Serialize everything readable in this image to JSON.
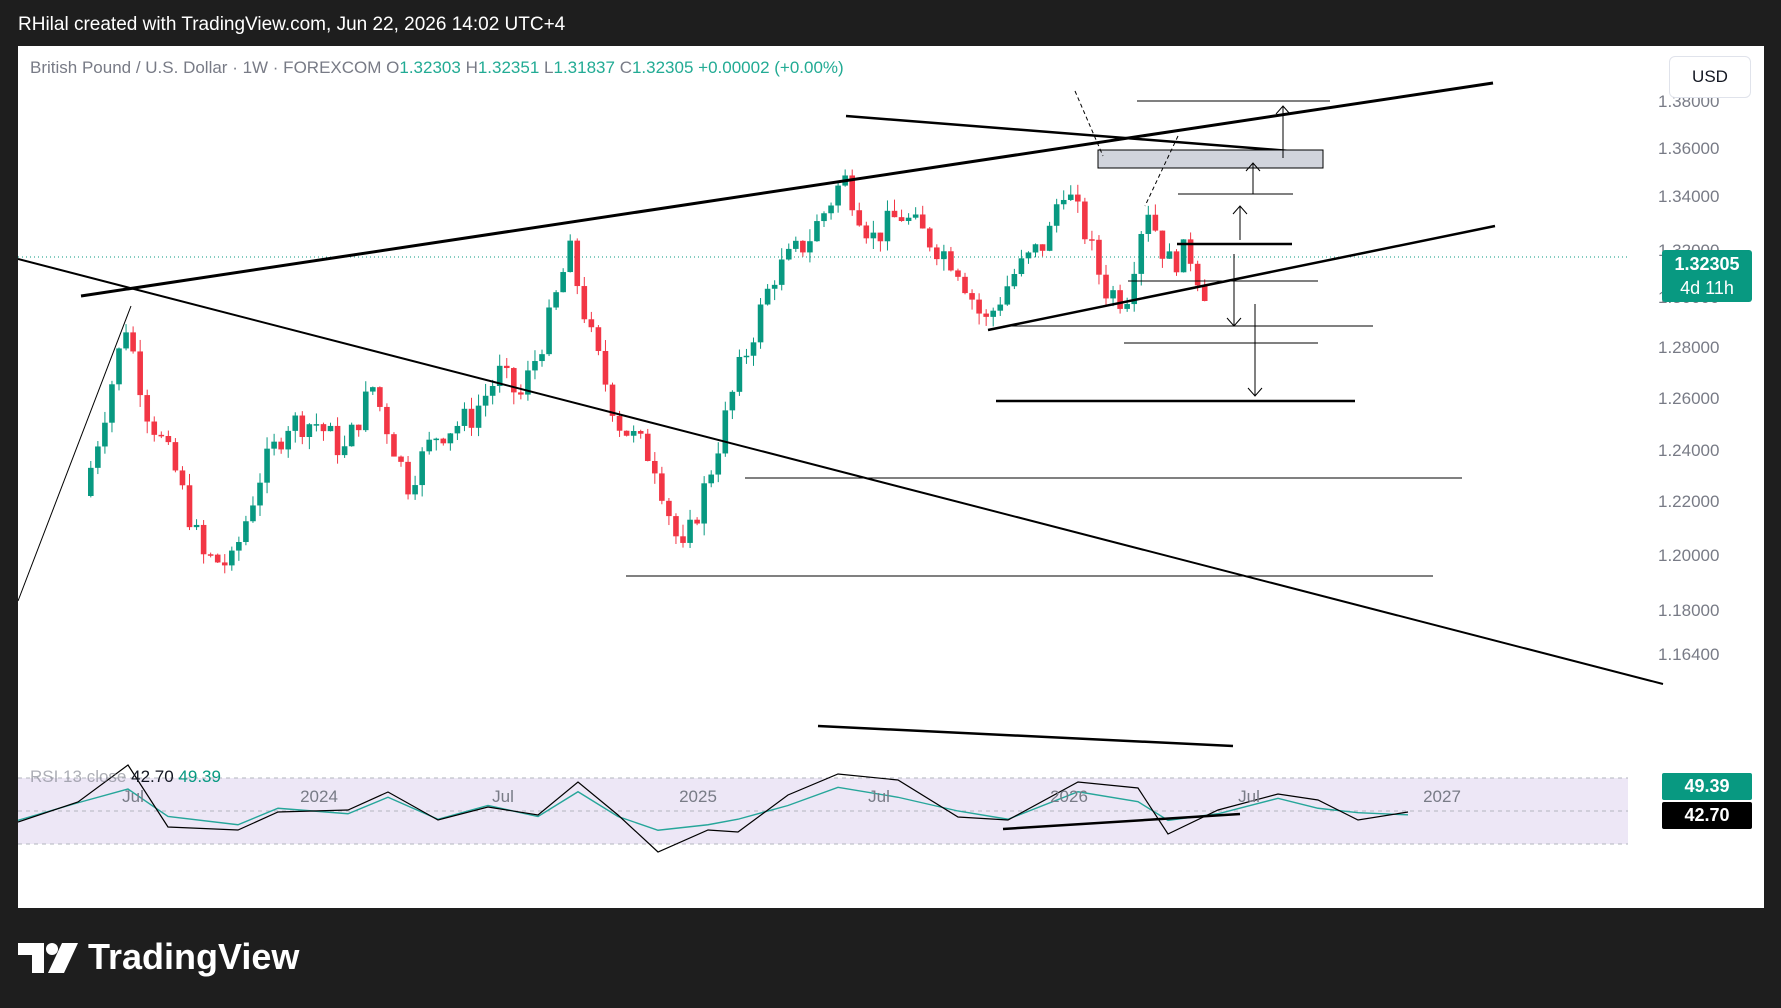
{
  "header": {
    "attribution": "RHilal created with TradingView.com, Jun 22, 2026 14:02 UTC+4"
  },
  "legend": {
    "symbol": "British Pound / U.S. Dollar · 1W · FOREXCOM",
    "open_label": "O",
    "open": "1.32303",
    "high_label": "H",
    "high": "1.32351",
    "low_label": "L",
    "low": "1.31837",
    "close_label": "C",
    "close": "1.32305",
    "change": "+0.00002 (+0.00%)"
  },
  "currency": "USD",
  "price_tag": {
    "price": "1.32305",
    "countdown": "4d 11h"
  },
  "rsi": {
    "label": "RSI 13 close",
    "rsi_value": "42.70",
    "ma_value": "49.39"
  },
  "brand": {
    "name": "TradingView"
  },
  "colors": {
    "up": "#089981",
    "down": "#f23645",
    "rsi_line": "#000000",
    "rsi_ma": "#26a69a",
    "rsi_band": "#ede7f6"
  },
  "chart_data": {
    "type": "candlestick",
    "title": "British Pound / U.S. Dollar · 1W · FOREXCOM",
    "y_axis_ticks": [
      "1.38000",
      "1.36000",
      "1.34000",
      "1.32000",
      "1.30000",
      "1.28000",
      "1.26000",
      "1.24000",
      "1.22000",
      "1.20000",
      "1.18000",
      "1.16400"
    ],
    "x_axis_ticks": [
      "Jul",
      "2024",
      "Jul",
      "2025",
      "Jul",
      "2026",
      "Jul",
      "2027"
    ],
    "ylim": [
      1.155,
      1.392
    ],
    "close_path": [
      [
        "2023-05-29",
        1.24
      ],
      [
        "2023-06-19",
        1.275
      ],
      [
        "2023-07-10",
        1.31
      ],
      [
        "2023-07-31",
        1.275
      ],
      [
        "2023-08-28",
        1.25
      ],
      [
        "2023-09-25",
        1.215
      ],
      [
        "2023-10-23",
        1.212
      ],
      [
        "2023-11-20",
        1.248
      ],
      [
        "2023-12-18",
        1.27
      ],
      [
        "2024-01-15",
        1.27
      ],
      [
        "2024-02-12",
        1.258
      ],
      [
        "2024-03-11",
        1.285
      ],
      [
        "2024-04-15",
        1.245
      ],
      [
        "2024-05-13",
        1.265
      ],
      [
        "2024-06-17",
        1.272
      ],
      [
        "2024-07-15",
        1.29
      ],
      [
        "2024-08-05",
        1.28
      ],
      [
        "2024-09-02",
        1.31
      ],
      [
        "2024-09-23",
        1.34
      ],
      [
        "2024-10-14",
        1.305
      ],
      [
        "2024-11-11",
        1.27
      ],
      [
        "2024-12-16",
        1.255
      ],
      [
        "2025-01-13",
        1.215
      ],
      [
        "2025-02-10",
        1.25
      ],
      [
        "2025-03-10",
        1.29
      ],
      [
        "2025-04-14",
        1.33
      ],
      [
        "2025-05-19",
        1.345
      ],
      [
        "2025-06-23",
        1.37
      ],
      [
        "2025-07-21",
        1.345
      ],
      [
        "2025-08-18",
        1.355
      ],
      [
        "2025-09-15",
        1.345
      ],
      [
        "2025-10-13",
        1.335
      ],
      [
        "2025-11-10",
        1.31
      ],
      [
        "2025-12-08",
        1.33
      ],
      [
        "2026-01-12",
        1.345
      ],
      [
        "2026-01-26",
        1.368
      ],
      [
        "2026-02-16",
        1.35
      ],
      [
        "2026-03-09",
        1.325
      ],
      [
        "2026-03-30",
        1.32
      ],
      [
        "2026-04-20",
        1.36
      ],
      [
        "2026-05-11",
        1.335
      ],
      [
        "2026-06-01",
        1.34
      ],
      [
        "2026-06-15",
        1.325
      ],
      [
        "2026-06-22",
        1.32305
      ]
    ],
    "rsi": {
      "name": "RSI 13 close",
      "last": 42.7,
      "ma_last": 49.39
    },
    "annotations": {
      "horizontal_levels": [
        1.2786,
        1.249,
        1.2115,
        1.318,
        1.2995,
        1.331,
        1.35,
        1.3835
      ],
      "target_arrows": [
        "up 1.3500→1.3835",
        "down 1.3180→1.2786"
      ]
    }
  }
}
